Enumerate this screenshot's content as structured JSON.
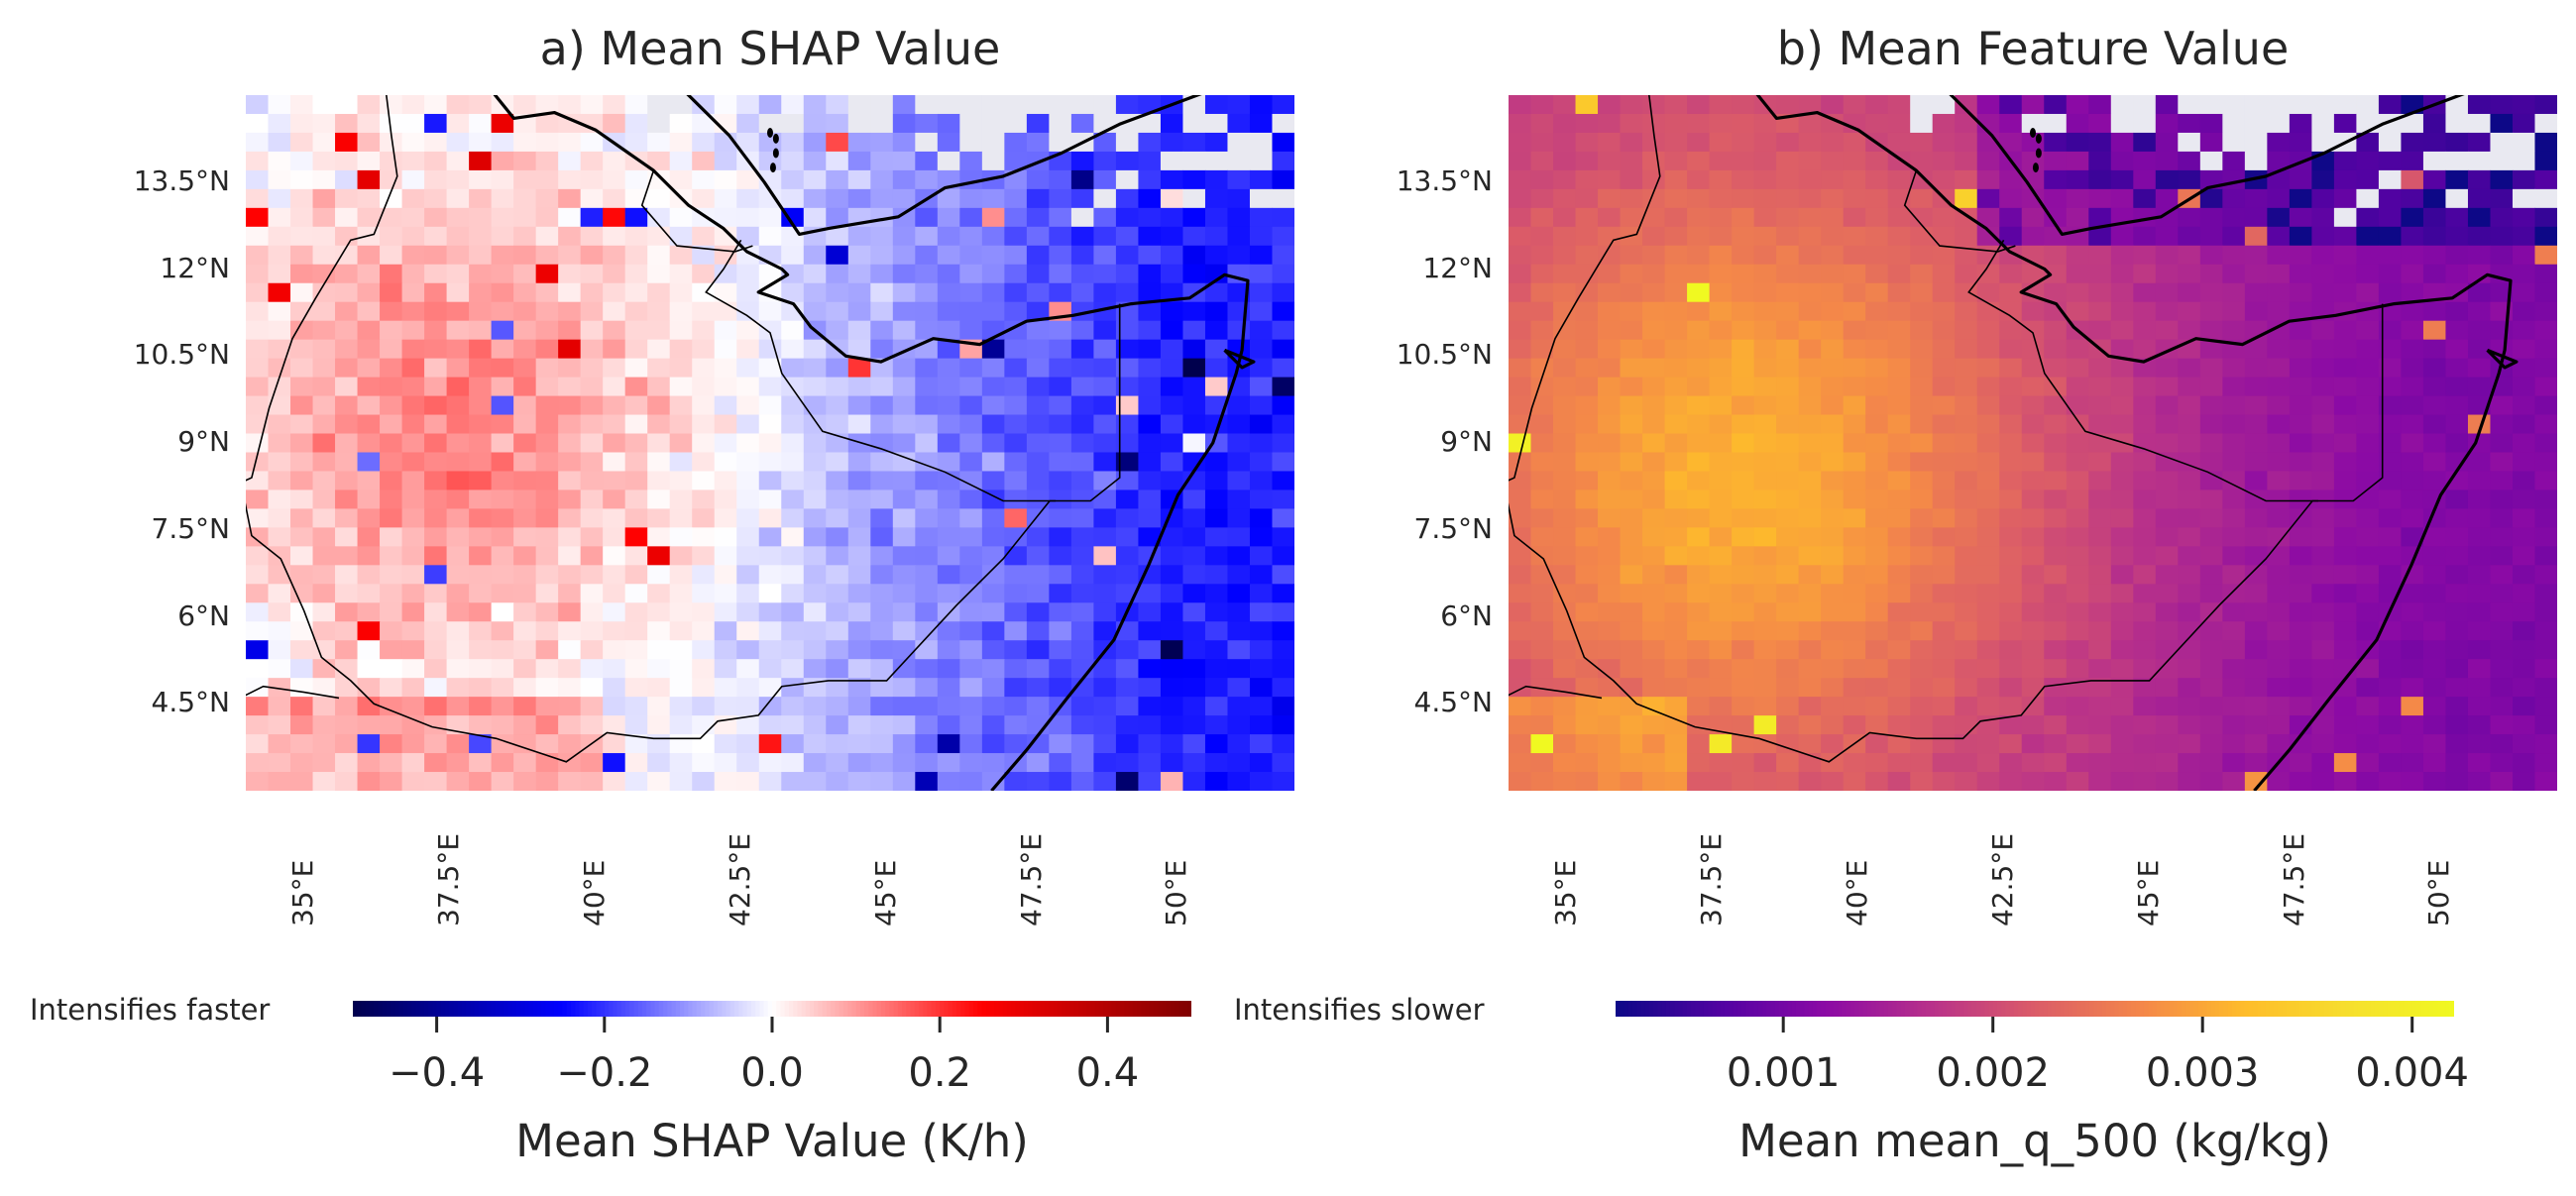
{
  "chart_data": [
    {
      "type": "heatmap",
      "title": "a) Mean SHAP Value",
      "lon_ticks": [
        "35°E",
        "37.5°E",
        "40°E",
        "42.5°E",
        "45°E",
        "47.5°E",
        "50°E"
      ],
      "lat_ticks": [
        "13.5°N",
        "12°N",
        "10.5°N",
        "9°N",
        "7.5°N",
        "6°N",
        "4.5°N"
      ],
      "lon_range": [
        34,
        52
      ],
      "lat_range": [
        3,
        15
      ],
      "colormap": "seismic",
      "colorbar": {
        "label": "Mean SHAP Value (K/h)",
        "range": [
          -0.5,
          0.5
        ],
        "ticks": [
          "−0.4",
          "−0.2",
          "0.0",
          "0.2",
          "0.4"
        ],
        "tick_values": [
          -0.4,
          -0.2,
          0.0,
          0.2,
          0.4
        ],
        "left_annotation": "Intensifies faster",
        "right_annotation": "Intensifies slower"
      },
      "pattern": "positive (red) values over the Ethiopian highlands in the west, negative (blue) values over the Horn of Africa and Somalia in the east, missing cells in the northeast"
    },
    {
      "type": "heatmap",
      "title": "b) Mean Feature Value",
      "lon_ticks": [
        "35°E",
        "37.5°E",
        "40°E",
        "42.5°E",
        "45°E",
        "47.5°E",
        "50°E"
      ],
      "lat_ticks": [
        "13.5°N",
        "12°N",
        "10.5°N",
        "9°N",
        "7.5°N",
        "6°N",
        "4.5°N"
      ],
      "lon_range": [
        34,
        52
      ],
      "lat_range": [
        3,
        15
      ],
      "colormap": "plasma",
      "colorbar": {
        "label": "Mean mean_q_500 (kg/kg)",
        "range": [
          0.0002,
          0.0042
        ],
        "ticks": [
          "0.001",
          "0.002",
          "0.003",
          "0.004"
        ],
        "tick_values": [
          0.001,
          0.002,
          0.003,
          0.004
        ]
      },
      "pattern": "high humidity (orange) over the western highlands, lower humidity (purple) over Somalia and the Gulf of Aden"
    }
  ],
  "colors": {
    "missing_cell": "#e9e9f1",
    "coastline": "#000000",
    "text": "#262626"
  }
}
